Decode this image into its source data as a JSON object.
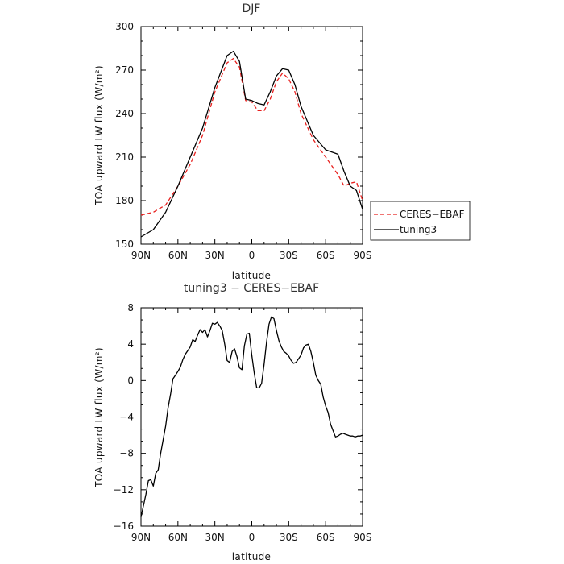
{
  "chart_data": [
    {
      "type": "line",
      "title": "DJF",
      "xlabel": "latitude",
      "ylabel": "TOA upward LW flux (W/m²)",
      "xlim": [
        90,
        -90
      ],
      "ylim": [
        150,
        300
      ],
      "xticks": [
        90,
        60,
        30,
        0,
        -30,
        -60,
        -90
      ],
      "xtick_labels": [
        "90N",
        "60N",
        "30N",
        "0",
        "30S",
        "60S",
        "90S"
      ],
      "yticks": [
        150,
        180,
        210,
        240,
        270,
        300
      ],
      "ytick_labels": [
        "150",
        "180",
        "210",
        "240",
        "270",
        "300"
      ],
      "grid": false,
      "legend": "right",
      "x": [
        90,
        80,
        70,
        60,
        50,
        40,
        30,
        20,
        15,
        10,
        5,
        0,
        -5,
        -10,
        -15,
        -20,
        -25,
        -30,
        -35,
        -40,
        -50,
        -60,
        -70,
        -75,
        -80,
        -85,
        -90
      ],
      "series": [
        {
          "name": "CERES−EBAF",
          "color": "#e8201e",
          "dash": "dashed",
          "values": [
            170,
            172,
            177,
            190,
            205,
            225,
            255,
            275,
            278,
            272,
            249,
            248,
            242,
            242,
            250,
            262,
            268,
            264,
            255,
            240,
            222,
            210,
            198,
            190,
            192,
            193,
            180
          ]
        },
        {
          "name": "tuning3",
          "color": "#000000",
          "dash": "solid",
          "values": [
            155,
            160,
            172,
            190,
            210,
            230,
            258,
            280,
            283,
            276,
            250,
            249,
            247,
            246,
            255,
            266,
            271,
            270,
            260,
            245,
            225,
            215,
            212,
            200,
            190,
            187,
            174
          ]
        }
      ]
    },
    {
      "type": "line",
      "title": "tuning3 − CERES−EBAF",
      "xlabel": "latitude",
      "ylabel": "TOA upward LW flux (W/m²)",
      "xlim": [
        90,
        -90
      ],
      "ylim": [
        -16,
        8
      ],
      "xticks": [
        90,
        60,
        30,
        0,
        -30,
        -60,
        -90
      ],
      "xtick_labels": [
        "90N",
        "60N",
        "30N",
        "0",
        "30S",
        "60S",
        "90S"
      ],
      "yticks": [
        -16,
        -12,
        -8,
        -4,
        0,
        4,
        8
      ],
      "ytick_labels": [
        "−16",
        "−12",
        "−8",
        "−4",
        "0",
        "4",
        "8"
      ],
      "grid": false,
      "x": [
        90,
        86,
        84,
        82,
        80,
        78,
        76,
        74,
        72,
        70,
        68,
        66,
        64,
        62,
        60,
        58,
        56,
        54,
        52,
        50,
        48,
        46,
        44,
        42,
        40,
        38,
        36,
        34,
        32,
        30,
        28,
        26,
        24,
        22,
        20,
        18,
        16,
        14,
        12,
        10,
        8,
        6,
        4,
        2,
        0,
        -2,
        -4,
        -6,
        -8,
        -10,
        -12,
        -14,
        -16,
        -18,
        -20,
        -22,
        -24,
        -26,
        -28,
        -30,
        -32,
        -34,
        -36,
        -38,
        -40,
        -42,
        -44,
        -46,
        -48,
        -50,
        -52,
        -54,
        -56,
        -58,
        -60,
        -62,
        -64,
        -66,
        -68,
        -70,
        -72,
        -74,
        -76,
        -78,
        -80,
        -82,
        -84,
        -86,
        -88,
        -90
      ],
      "series": [
        {
          "name": "",
          "color": "#000000",
          "dash": "solid",
          "values": [
            -15,
            -12.5,
            -11,
            -10.9,
            -11.6,
            -10.2,
            -9.8,
            -8,
            -6.5,
            -5,
            -3,
            -1.5,
            0.2,
            0.6,
            1,
            1.5,
            2.3,
            2.9,
            3.3,
            3.7,
            4.5,
            4.3,
            5,
            5.6,
            5.3,
            5.6,
            4.8,
            5.5,
            6.3,
            6.2,
            6.4,
            6,
            5.5,
            4,
            2.2,
            2,
            3.2,
            3.5,
            2.6,
            1.4,
            1.2,
            3.8,
            5.1,
            5.2,
            2.8,
            0.8,
            -0.8,
            -0.8,
            -0.3,
            1.8,
            4.2,
            6.2,
            7,
            6.8,
            5.5,
            4.4,
            3.7,
            3.2,
            3,
            2.7,
            2.2,
            1.9,
            2,
            2.4,
            2.8,
            3.6,
            3.9,
            4,
            3.2,
            2,
            0.6,
            0,
            -0.4,
            -1.8,
            -2.8,
            -3.5,
            -4.8,
            -5.5,
            -6.2,
            -6.1,
            -5.9,
            -5.8,
            -5.9,
            -6,
            -6.1,
            -6.1,
            -6.2,
            -6.1,
            -6.1,
            -6
          ]
        }
      ]
    }
  ]
}
